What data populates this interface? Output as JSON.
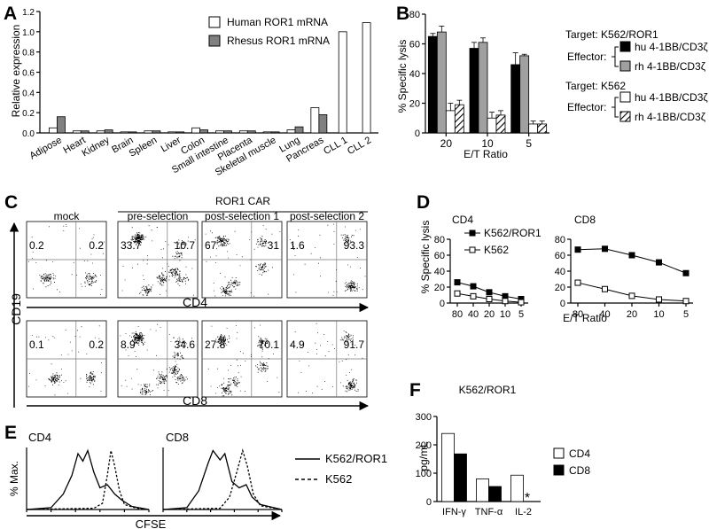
{
  "panels": {
    "A": "A",
    "B": "B",
    "C": "C",
    "D": "D",
    "E": "E",
    "F": "F"
  },
  "charts": [
    {
      "id": "A",
      "type": "bar",
      "ylabel": "Relative expression",
      "ylim": [
        0,
        1.2
      ],
      "yticks": [
        "0.0",
        "0.2",
        "0.4",
        "0.6",
        "0.8",
        "1.0",
        "1.2"
      ],
      "categories": [
        "Adipose",
        "Heart",
        "Kidney",
        "Brain",
        "Spleen",
        "Liver",
        "Colon",
        "Small intestine",
        "Placenta",
        "Skeletal muscle",
        "Lung",
        "Pancreas",
        "CLL 1",
        "CLL 2"
      ],
      "series": [
        {
          "name": "Human ROR1 mRNA",
          "color": "#ffffff",
          "values": [
            0.05,
            0.02,
            0.02,
            0.01,
            0.02,
            0.01,
            0.05,
            0.02,
            0.02,
            0.01,
            0.03,
            0.25,
            1.0,
            1.09
          ]
        },
        {
          "name": "Rhesus ROR1 mRNA",
          "color": "#808080",
          "values": [
            0.16,
            0.02,
            0.03,
            0.01,
            0.02,
            0.01,
            0.03,
            0.02,
            0.02,
            0.01,
            0.06,
            0.18,
            null,
            null
          ]
        }
      ]
    },
    {
      "id": "B",
      "type": "bar",
      "ylabel": "% Specific lysis",
      "xlabel": "E/T Ratio",
      "ylim": [
        0,
        80
      ],
      "yticks": [
        "0",
        "20",
        "40",
        "60",
        "80"
      ],
      "categories": [
        "20",
        "10",
        "5"
      ],
      "legend_groups": [
        {
          "target": "Target: K562/ROR1",
          "effector": "Effector:",
          "items": [
            {
              "name": "hu 4-1BB/CD3ζ",
              "style": "black"
            },
            {
              "name": "rh 4-1BB/CD3ζ",
              "style": "gray"
            }
          ]
        },
        {
          "target": "Target: K562",
          "effector": "Effector:",
          "items": [
            {
              "name": "hu 4-1BB/CD3ζ",
              "style": "white"
            },
            {
              "name": "rh 4-1BB/CD3ζ",
              "style": "hatch"
            }
          ]
        }
      ],
      "series": [
        {
          "name": "K562/ROR1 hu 4-1BB/CD3ζ",
          "style": "black",
          "values": [
            65,
            57,
            46
          ],
          "err": [
            2,
            4,
            8
          ]
        },
        {
          "name": "K562/ROR1 rh 4-1BB/CD3ζ",
          "style": "gray",
          "values": [
            68,
            61,
            52
          ],
          "err": [
            4,
            3,
            1
          ]
        },
        {
          "name": "K562 hu 4-1BB/CD3ζ",
          "style": "white",
          "values": [
            15,
            10,
            6
          ],
          "err": [
            5,
            4,
            2
          ]
        },
        {
          "name": "K562 rh 4-1BB/CD3ζ",
          "style": "hatch",
          "values": [
            19,
            12,
            6
          ],
          "err": [
            3,
            3,
            2
          ]
        }
      ]
    },
    {
      "id": "C",
      "type": "scatter",
      "group_label": "ROR1 CAR",
      "ylabel": "CD19",
      "row_xlabels": [
        "CD4",
        "CD8"
      ],
      "columns": [
        "mock",
        "pre-selection",
        "post-selection 1",
        "post-selection 2"
      ],
      "rows": [
        [
          {
            "tl": "0.2",
            "tr": "0.2"
          },
          {
            "tl": "33.7",
            "tr": "10.7"
          },
          {
            "tl": "67",
            "tr": "31"
          },
          {
            "tl": "1.6",
            "tr": "93.3"
          }
        ],
        [
          {
            "tl": "0.1",
            "tr": "0.2"
          },
          {
            "tl": "8.9",
            "tr": "34.6"
          },
          {
            "tl": "27.8",
            "tr": "70.1"
          },
          {
            "tl": "4.9",
            "tr": "91.7"
          }
        ]
      ]
    },
    {
      "id": "D",
      "type": "line",
      "ylabel": "% Specific lysis",
      "xlabel": "E/T Ratio",
      "x": [
        "80",
        "40",
        "20",
        "10",
        "5"
      ],
      "ylim": [
        0,
        80
      ],
      "yticks": [
        "0",
        "20",
        "40",
        "60",
        "80"
      ],
      "subplots": [
        {
          "title": "CD4",
          "series": [
            {
              "name": "K562/ROR1",
              "marker": "filled",
              "values": [
                26,
                21,
                13.5,
                8.5,
                5
              ]
            },
            {
              "name": "K562",
              "marker": "open",
              "values": [
                12,
                8.5,
                5,
                2.5,
                1
              ]
            }
          ]
        },
        {
          "title": "CD8",
          "series": [
            {
              "name": "K562/ROR1",
              "marker": "filled",
              "values": [
                67,
                68,
                60,
                51,
                37.5
              ]
            },
            {
              "name": "K562",
              "marker": "open",
              "values": [
                25.5,
                17.5,
                9,
                4.5,
                2.5
              ]
            }
          ]
        }
      ]
    },
    {
      "id": "E",
      "type": "line",
      "ylabel": "% Max.",
      "xlabel": "CFSE",
      "subplots": [
        {
          "title": "CD4"
        },
        {
          "title": "CD8"
        }
      ],
      "legend": [
        {
          "name": "K562/ROR1",
          "dash": "solid"
        },
        {
          "name": "K562",
          "dash": "dashed"
        }
      ]
    },
    {
      "id": "F",
      "type": "bar",
      "title": "K562/ROR1",
      "ylabel": "pg/mL",
      "ylim": [
        0,
        300
      ],
      "yticks": [
        "0",
        "100",
        "200",
        "300"
      ],
      "categories": [
        "IFN-γ",
        "TNF-α",
        "IL-2"
      ],
      "series": [
        {
          "name": "CD4",
          "color": "#ffffff",
          "values": [
            240,
            80,
            93
          ]
        },
        {
          "name": "CD8",
          "color": "#000000",
          "values": [
            168,
            53,
            null
          ]
        }
      ],
      "annotation": "*"
    }
  ]
}
